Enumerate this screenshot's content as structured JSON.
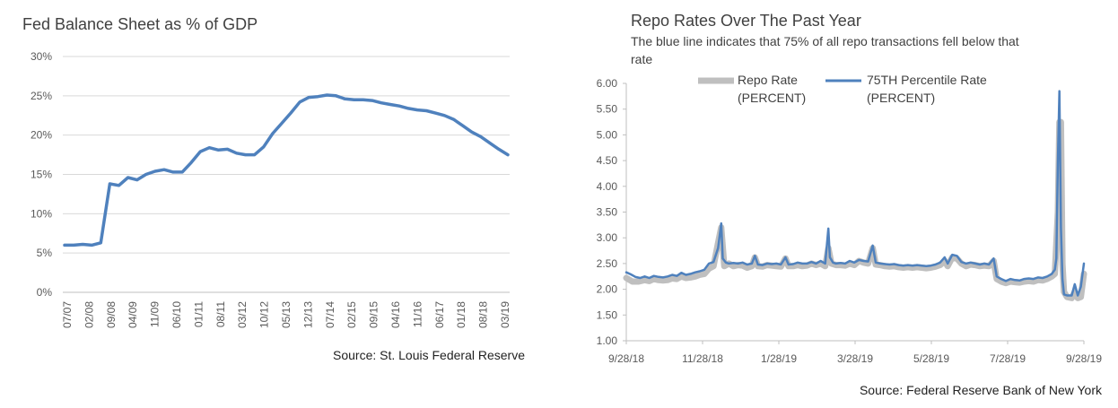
{
  "charts": [
    {
      "id": "fed",
      "source": "Source: St. Louis Federal Reserve",
      "chart_data": {
        "type": "line",
        "title": "Fed Balance Sheet as % of GDP",
        "xlabel": "",
        "ylabel": "",
        "ylim": [
          0,
          30
        ],
        "y_ticks": [
          "0%",
          "5%",
          "10%",
          "15%",
          "20%",
          "25%",
          "30%"
        ],
        "x_ticks": [
          "07/07",
          "02/08",
          "09/08",
          "04/09",
          "11/09",
          "06/10",
          "01/11",
          "08/11",
          "03/12",
          "10/12",
          "05/13",
          "12/13",
          "07/14",
          "02/15",
          "09/15",
          "04/16",
          "11/16",
          "06/17",
          "01/18",
          "08/18",
          "03/19"
        ],
        "grid": true,
        "legend": "none",
        "line_color": "#4f81bd",
        "series": [
          {
            "values": [
              6.0,
              6.0,
              6.1,
              6.0,
              6.3,
              13.8,
              13.6,
              14.6,
              14.3,
              15.0,
              15.4,
              15.6,
              15.3,
              15.3,
              16.5,
              17.9,
              18.4,
              18.1,
              18.2,
              17.7,
              17.5,
              17.5,
              18.5,
              20.2,
              21.5,
              22.8,
              24.2,
              24.8,
              24.9,
              25.1,
              25.0,
              24.6,
              24.5,
              24.5,
              24.4,
              24.1,
              23.9,
              23.7,
              23.4,
              23.2,
              23.1,
              22.8,
              22.5,
              22.0,
              21.2,
              20.4,
              19.8,
              19.0,
              18.2,
              17.5
            ]
          }
        ]
      }
    },
    {
      "id": "repo",
      "source": "Source: Federal Reserve Bank of New York",
      "chart_data": {
        "type": "line",
        "title": "Repo Rates Over The Past Year",
        "subtitle": "The blue line indicates that 75% of all repo transactions fell below that rate",
        "xlabel": "",
        "ylabel": "",
        "ylim": [
          1.0,
          6.0
        ],
        "y_ticks": [
          "1.00",
          "1.50",
          "2.00",
          "2.50",
          "3.00",
          "3.50",
          "4.00",
          "4.50",
          "5.00",
          "5.50",
          "6.00"
        ],
        "x_ticks": [
          "9/28/18",
          "11/28/18",
          "1/28/19",
          "3/28/19",
          "5/28/19",
          "7/28/19",
          "9/28/19"
        ],
        "grid": false,
        "legend": "top-center",
        "series": [
          {
            "name": "Repo Rate (PERCENT)",
            "color": "#bfbfbf",
            "points": [
              [
                0,
                2.22
              ],
              [
                4,
                2.15
              ],
              [
                8,
                2.15
              ],
              [
                12,
                2.18
              ],
              [
                15,
                2.16
              ],
              [
                18,
                2.2
              ],
              [
                21,
                2.18
              ],
              [
                24,
                2.17
              ],
              [
                27,
                2.18
              ],
              [
                30,
                2.21
              ],
              [
                33,
                2.2
              ],
              [
                36,
                2.25
              ],
              [
                39,
                2.22
              ],
              [
                42,
                2.23
              ],
              [
                45,
                2.25
              ],
              [
                48,
                2.28
              ],
              [
                51,
                2.3
              ],
              [
                54,
                2.4
              ],
              [
                57,
                2.45
              ],
              [
                60,
                2.9
              ],
              [
                62,
                3.2
              ],
              [
                64,
                2.45
              ],
              [
                67,
                2.5
              ],
              [
                70,
                2.45
              ],
              [
                73,
                2.47
              ],
              [
                76,
                2.46
              ],
              [
                79,
                2.42
              ],
              [
                82,
                2.45
              ],
              [
                84,
                2.62
              ],
              [
                86,
                2.45
              ],
              [
                89,
                2.44
              ],
              [
                92,
                2.47
              ],
              [
                95,
                2.46
              ],
              [
                98,
                2.45
              ],
              [
                101,
                2.44
              ],
              [
                104,
                2.6
              ],
              [
                106,
                2.45
              ],
              [
                109,
                2.45
              ],
              [
                112,
                2.47
              ],
              [
                115,
                2.45
              ],
              [
                118,
                2.46
              ],
              [
                121,
                2.5
              ],
              [
                124,
                2.47
              ],
              [
                127,
                2.5
              ],
              [
                130,
                2.45
              ],
              [
                132,
                2.8
              ],
              [
                134,
                2.5
              ],
              [
                137,
                2.47
              ],
              [
                140,
                2.47
              ],
              [
                143,
                2.46
              ],
              [
                146,
                2.5
              ],
              [
                149,
                2.47
              ],
              [
                152,
                2.55
              ],
              [
                155,
                2.52
              ],
              [
                158,
                2.5
              ],
              [
                161,
                2.8
              ],
              [
                163,
                2.48
              ],
              [
                166,
                2.47
              ],
              [
                169,
                2.45
              ],
              [
                172,
                2.44
              ],
              [
                175,
                2.45
              ],
              [
                178,
                2.43
              ],
              [
                181,
                2.42
              ],
              [
                184,
                2.43
              ],
              [
                187,
                2.42
              ],
              [
                190,
                2.43
              ],
              [
                193,
                2.42
              ],
              [
                196,
                2.41
              ],
              [
                199,
                2.42
              ],
              [
                202,
                2.44
              ],
              [
                205,
                2.47
              ],
              [
                208,
                2.55
              ],
              [
                210,
                2.45
              ],
              [
                213,
                2.62
              ],
              [
                216,
                2.6
              ],
              [
                219,
                2.5
              ],
              [
                222,
                2.45
              ],
              [
                225,
                2.48
              ],
              [
                228,
                2.47
              ],
              [
                231,
                2.45
              ],
              [
                234,
                2.46
              ],
              [
                237,
                2.45
              ],
              [
                240,
                2.55
              ],
              [
                242,
                2.2
              ],
              [
                245,
                2.15
              ],
              [
                248,
                2.12
              ],
              [
                251,
                2.15
              ],
              [
                254,
                2.14
              ],
              [
                257,
                2.13
              ],
              [
                260,
                2.15
              ],
              [
                263,
                2.16
              ],
              [
                266,
                2.15
              ],
              [
                269,
                2.18
              ],
              [
                272,
                2.17
              ],
              [
                275,
                2.2
              ],
              [
                278,
                2.25
              ],
              [
                280,
                2.3
              ],
              [
                282,
                3.5
              ],
              [
                283,
                5.25
              ],
              [
                284,
                5.25
              ],
              [
                285,
                2.5
              ],
              [
                286,
                1.95
              ],
              [
                288,
                1.85
              ],
              [
                291,
                1.83
              ],
              [
                293,
                1.95
              ],
              [
                295,
                1.83
              ],
              [
                297,
                1.85
              ],
              [
                299,
                2.3
              ]
            ]
          },
          {
            "name": "75TH Percentile Rate (PERCENT)",
            "color": "#4f81bd",
            "points": [
              [
                0,
                2.33
              ],
              [
                3,
                2.29
              ],
              [
                6,
                2.24
              ],
              [
                9,
                2.22
              ],
              [
                12,
                2.25
              ],
              [
                15,
                2.22
              ],
              [
                18,
                2.26
              ],
              [
                21,
                2.24
              ],
              [
                24,
                2.23
              ],
              [
                27,
                2.25
              ],
              [
                30,
                2.28
              ],
              [
                33,
                2.26
              ],
              [
                36,
                2.32
              ],
              [
                39,
                2.28
              ],
              [
                42,
                2.3
              ],
              [
                45,
                2.33
              ],
              [
                48,
                2.35
              ],
              [
                51,
                2.38
              ],
              [
                54,
                2.5
              ],
              [
                57,
                2.53
              ],
              [
                60,
                2.8
              ],
              [
                62,
                3.28
              ],
              [
                63,
                2.6
              ],
              [
                65,
                2.52
              ],
              [
                67,
                2.5
              ],
              [
                70,
                2.51
              ],
              [
                73,
                2.5
              ],
              [
                76,
                2.52
              ],
              [
                79,
                2.48
              ],
              [
                82,
                2.5
              ],
              [
                84,
                2.65
              ],
              [
                86,
                2.48
              ],
              [
                89,
                2.47
              ],
              [
                92,
                2.5
              ],
              [
                95,
                2.49
              ],
              [
                98,
                2.5
              ],
              [
                101,
                2.48
              ],
              [
                104,
                2.62
              ],
              [
                106,
                2.48
              ],
              [
                109,
                2.49
              ],
              [
                112,
                2.52
              ],
              [
                115,
                2.5
              ],
              [
                118,
                2.5
              ],
              [
                121,
                2.53
              ],
              [
                124,
                2.5
              ],
              [
                127,
                2.55
              ],
              [
                130,
                2.5
              ],
              [
                132,
                3.18
              ],
              [
                133,
                2.62
              ],
              [
                135,
                2.52
              ],
              [
                137,
                2.5
              ],
              [
                140,
                2.51
              ],
              [
                143,
                2.5
              ],
              [
                146,
                2.55
              ],
              [
                149,
                2.52
              ],
              [
                152,
                2.57
              ],
              [
                155,
                2.55
              ],
              [
                158,
                2.54
              ],
              [
                161,
                2.85
              ],
              [
                163,
                2.52
              ],
              [
                166,
                2.5
              ],
              [
                169,
                2.49
              ],
              [
                172,
                2.48
              ],
              [
                175,
                2.49
              ],
              [
                178,
                2.47
              ],
              [
                181,
                2.46
              ],
              [
                184,
                2.47
              ],
              [
                187,
                2.46
              ],
              [
                190,
                2.47
              ],
              [
                193,
                2.46
              ],
              [
                196,
                2.45
              ],
              [
                199,
                2.46
              ],
              [
                202,
                2.48
              ],
              [
                205,
                2.52
              ],
              [
                208,
                2.62
              ],
              [
                210,
                2.5
              ],
              [
                213,
                2.67
              ],
              [
                216,
                2.65
              ],
              [
                219,
                2.53
              ],
              [
                222,
                2.5
              ],
              [
                225,
                2.52
              ],
              [
                228,
                2.5
              ],
              [
                231,
                2.48
              ],
              [
                234,
                2.5
              ],
              [
                237,
                2.48
              ],
              [
                240,
                2.6
              ],
              [
                242,
                2.25
              ],
              [
                245,
                2.2
              ],
              [
                248,
                2.16
              ],
              [
                251,
                2.2
              ],
              [
                254,
                2.18
              ],
              [
                257,
                2.17
              ],
              [
                260,
                2.2
              ],
              [
                263,
                2.21
              ],
              [
                266,
                2.2
              ],
              [
                269,
                2.23
              ],
              [
                272,
                2.22
              ],
              [
                275,
                2.25
              ],
              [
                278,
                2.3
              ],
              [
                280,
                2.38
              ],
              [
                281,
                2.6
              ],
              [
                282,
                4.5
              ],
              [
                283,
                5.85
              ],
              [
                284,
                3.2
              ],
              [
                285,
                2.2
              ],
              [
                286,
                1.9
              ],
              [
                288,
                1.88
              ],
              [
                291,
                1.88
              ],
              [
                293,
                2.1
              ],
              [
                295,
                1.88
              ],
              [
                297,
                2.05
              ],
              [
                299,
                2.5
              ]
            ]
          }
        ]
      }
    }
  ]
}
